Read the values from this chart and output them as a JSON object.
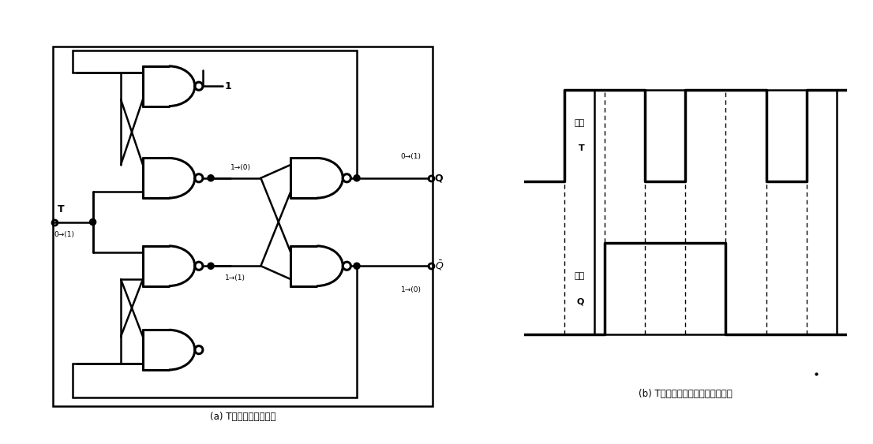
{
  "bg_color": "#ffffff",
  "caption_a": "(a) T触发器的电路结构",
  "caption_b_part1": "(b) T触发器的输",
  "caption_b_part2": "入和输",
  "caption_b_part3": "出信号波形",
  "lc": "#000000",
  "wc": "#000000"
}
